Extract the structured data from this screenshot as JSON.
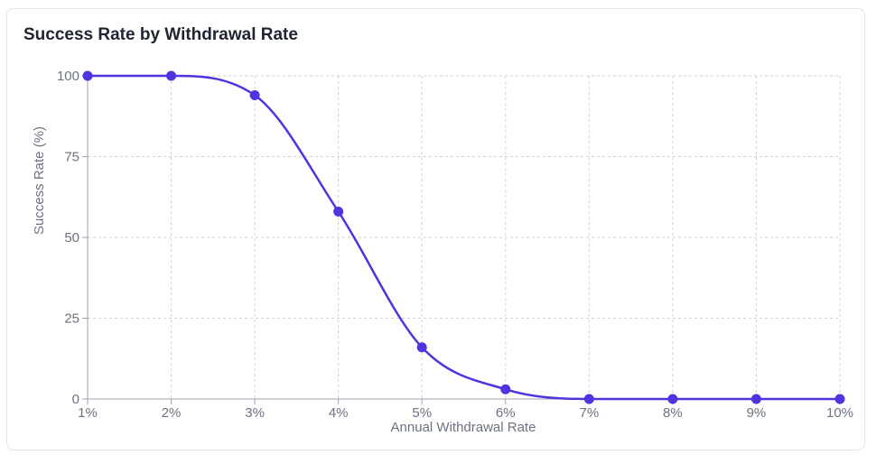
{
  "card": {
    "title": "Success Rate by Withdrawal Rate"
  },
  "chart_data": {
    "type": "line",
    "title": "Success Rate by Withdrawal Rate",
    "xlabel": "Annual Withdrawal Rate",
    "ylabel": "Success Rate (%)",
    "categories": [
      "1%",
      "2%",
      "3%",
      "4%",
      "5%",
      "6%",
      "7%",
      "8%",
      "9%",
      "10%"
    ],
    "yticks": [
      "0",
      "25",
      "50",
      "75",
      "100"
    ],
    "ylim": [
      0,
      100
    ],
    "grid": true,
    "curve": "smooth",
    "series": [
      {
        "values": [
          100,
          100,
          94,
          58,
          16,
          3,
          0,
          0,
          0,
          0
        ],
        "color": "#4f35e0"
      }
    ]
  },
  "colors": {
    "line": "#4f35e0",
    "grid": "#cfd2d8",
    "axis": "#9ca3af",
    "text": "#6b7280",
    "title": "#1f2431"
  }
}
